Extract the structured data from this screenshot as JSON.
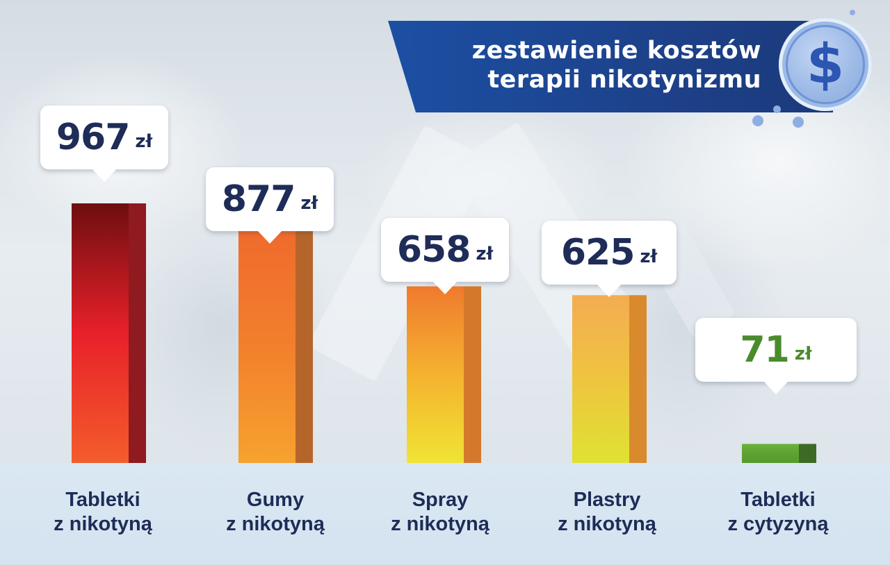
{
  "title": {
    "line1": "zestawienie kosztów",
    "line2": "terapii nikotynizmu"
  },
  "currency_symbol": "$",
  "chart_data": {
    "type": "bar",
    "title": "zestawienie kosztów terapii nikotynizmu",
    "unit": "zł",
    "categories": [
      {
        "line1": "Tabletki",
        "line2": "z nikotyną"
      },
      {
        "line1": "Gumy",
        "line2": "z nikotyną"
      },
      {
        "line1": "Spray",
        "line2": "z nikotyną"
      },
      {
        "line1": "Plastry",
        "line2": "z nikotyną"
      },
      {
        "line1": "Tabletki",
        "line2": "z cytyzyną"
      }
    ],
    "values": [
      967,
      877,
      658,
      625,
      71
    ],
    "value_labels": [
      "967",
      "877",
      "658",
      "625",
      "71"
    ],
    "colors": [
      {
        "top": "#6e0e10",
        "mid": "#e8202a",
        "bottom": "#f35d2b",
        "side": "#8f1a1f"
      },
      {
        "top": "#ef6a2c",
        "mid": "#f27f2c",
        "bottom": "#f7a22f",
        "side": "#b5652a"
      },
      {
        "top": "#ef7a2e",
        "mid": "#f5b22f",
        "bottom": "#f0e434",
        "side": "#d4792c"
      },
      {
        "top": "#f3ac52",
        "mid": "#efc43f",
        "bottom": "#dfe232",
        "side": "#d98a2c"
      },
      {
        "top": "#6bb13a",
        "mid": "#5fa233",
        "bottom": "#569a2d",
        "side": "#3d6b25"
      }
    ],
    "ylim": [
      0,
      967
    ],
    "grid": false,
    "legend": "none"
  }
}
